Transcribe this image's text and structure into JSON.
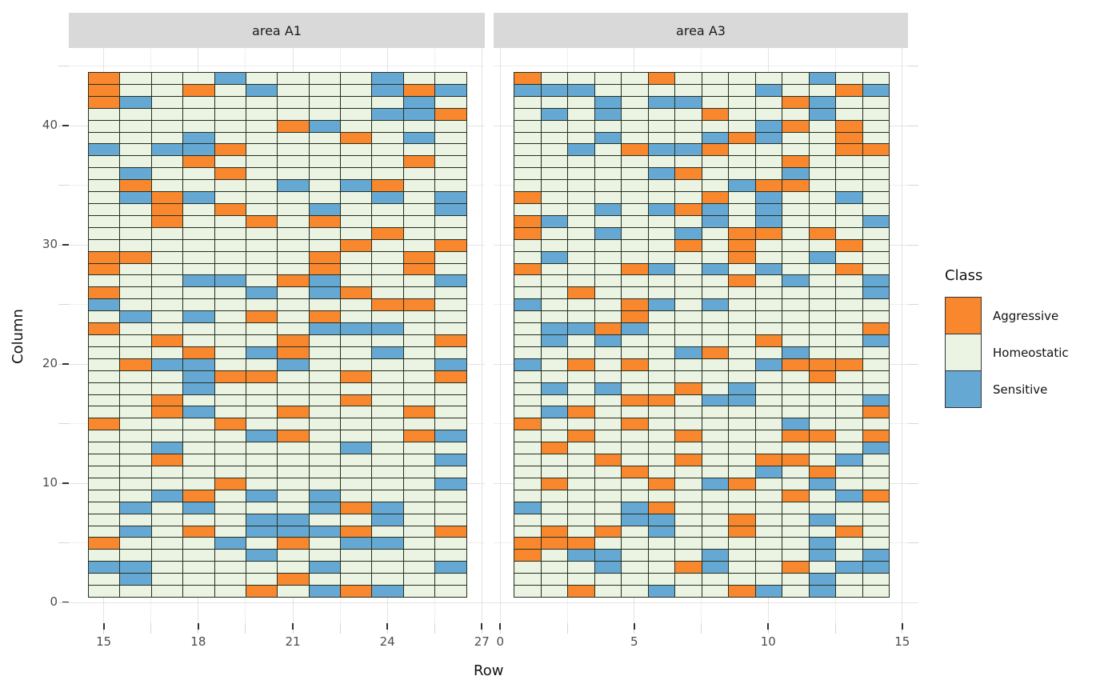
{
  "chart_data": {
    "type": "heatmap",
    "xlabel": "Row",
    "ylabel": "Column",
    "grid": "on",
    "legend_position": "right",
    "class_codes": {
      "A": "Aggressive",
      "H": "Homeostatic",
      "S": "Sensitive"
    },
    "palette": {
      "A": "#F8872E",
      "H": "#EBF3E3",
      "S": "#66A8D4"
    },
    "tile_border_color": "#25301f",
    "strip_bg": "#D9D9D9",
    "legend": {
      "title": "Class",
      "entries": [
        {
          "label": "Aggressive",
          "code": "A",
          "color": "#F8872E"
        },
        {
          "label": "Homeostatic",
          "code": "H",
          "color": "#EBF3E3"
        },
        {
          "label": "Sensitive",
          "code": "S",
          "color": "#66A8D4"
        }
      ]
    },
    "y_ticks": [
      0,
      10,
      20,
      30,
      40
    ],
    "y_minor": [
      5,
      15,
      25,
      35,
      45
    ],
    "row_values_top_to_bottom": {
      "top": 44,
      "bottom": 1
    },
    "facets": [
      {
        "label": "area A1",
        "x_first_column": 15,
        "x_last_column": 26,
        "x_ticks": [
          15,
          18,
          21,
          24,
          27
        ],
        "x_minor": [
          16.5,
          19.5,
          22.5,
          25.5
        ],
        "grid": [
          "AHHHSHHHHSHH",
          "AHHAHSHHHSAS",
          "ASHHHHHHHHSH",
          "HHHHHHHHHSSA",
          "HHHHHHASHHHH",
          "HHHSHHHHAHSH",
          "SHSSAHHHHHHH",
          "HHHAHHHHHHAH",
          "HSHHAHHHHHHH",
          "HAHHHHSHSAHH",
          "HSASHHHHHSHS",
          "HHAHAHHSHHHS",
          "HHAHHAHAHHHH",
          "HHHHHHHHHAHH",
          "HHHHHHHHAHHA",
          "AAHHHHHAHHAH",
          "AHHHHHHAHHAH",
          "HHHSSHASHHHS",
          "AHHHHSHSAHHH",
          "SHHHHHHHHAAH",
          "HSHSHAHAHHHH",
          "AHHHHHHSSSHH",
          "HHAHHHAHHHHA",
          "HHHAHSAHHSHH",
          "HASSHHSHHHHS",
          "HHHSAAHHAHHA",
          "HHHSHHHHHHHH",
          "HHAHHHHHAHHH",
          "HHASHHAHHHAH",
          "AHHHAHHHHHHH",
          "HHHHHSAHHHAS",
          "HHSHHHHHSHHH",
          "HHAHHHHHHHHS",
          "HHHHHHHHHHHH",
          "HHHHAHHHHHHS",
          "HHSAHSHSHHHH",
          "HSHSHHHSASHH",
          "HHHHHSSHHSHH",
          "HSHAHSSSAHHA",
          "AHHHSHAHSSHH",
          "HHHHHSHHHHHH",
          "SSHHHHHSHHHS",
          "HSHHHHAHHHHH",
          "HHHHHAHSASHH"
        ]
      },
      {
        "label": "area A3",
        "x_first_column": 1,
        "x_last_column": 14,
        "x_ticks": [
          0,
          5,
          10,
          15
        ],
        "x_minor": [
          2.5,
          7.5,
          12.5
        ],
        "grid": [
          "AHHHHAHHHHHSHH",
          "SSSHHHHHHSHHAS",
          "HHHSHSSHHHASHH",
          "HSHSHHHAHHHSHH",
          "HHHHHHHHHSAHAH",
          "HHHSHHHSASHHAH",
          "HHSHASSAHHHHAA",
          "HHHHHHHHHHAHHH",
          "HHHHHSAHHHSHHH",
          "HHHHHHHHSAAHHH",
          "AHHHHHHAHSHHSH",
          "HHHSHSASHSHHHH",
          "ASHHHHHSHSHHHS",
          "AHHSHHSHAAHAHH",
          "HHHHHHAHAHHHAH",
          "HSHHHHHHAHHSHH",
          "AHHHASHSHSHHAH",
          "HHHHHHHHAHSHHS",
          "HHAHHHHHHHHHHS",
          "SHHHASHSHHHHHH",
          "HHHHAHHHHHHHHH",
          "HSSASHHHHHHHHA",
          "HSHSHHHHHAHHHS",
          "HHHHHHSAHHSHHH",
          "SHAHAHHHHSAAAH",
          "HHHHHHHHHHHAHH",
          "HSHSHHAHSHHHHH",
          "HHHHAAHSSHHHHS",
          "HSAHHHHHHHHHHA",
          "AHHHAHHHHHSHHH",
          "HHAHHHAHHHAAHA",
          "HAHHHHHHHHHHHS",
          "HHHAHHAHHAAHSH",
          "HHHHAHHHHSHAHH",
          "HAHHHAHSAHHSHH",
          "HHHHHHHHHHAHSA",
          "SHHHSAHHHHHHHH",
          "HHHHSSHHAHHSHH",
          "HAHAHSHHAHHHAH",
          "AAAHHHHHHHHSHH",
          "AHSSHHHSHHHSHS",
          "HHHSHHASHHAHSS",
          "HHHHHHHHHHHSHH",
          "HHAHHSHHASHSHH"
        ]
      }
    ]
  }
}
